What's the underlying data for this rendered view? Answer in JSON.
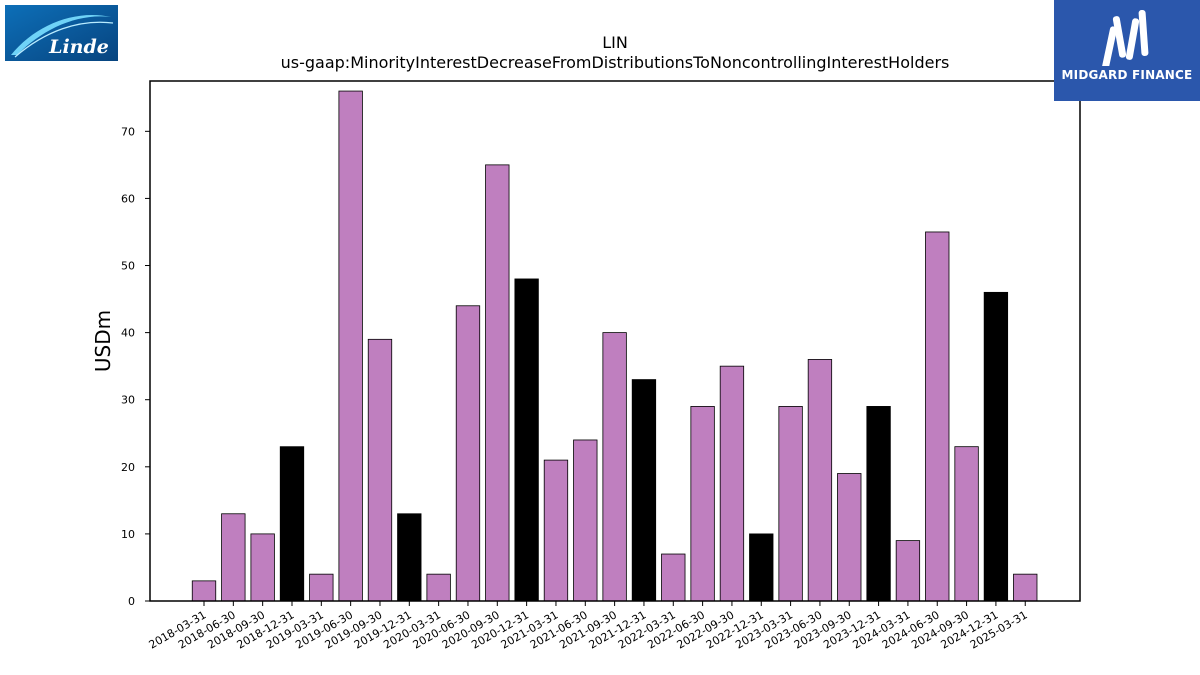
{
  "logos": {
    "left": "Linde",
    "right": "MIDGARD FINANCE"
  },
  "colors": {
    "bar_default": "#bf7fbf",
    "bar_q4": "#000000",
    "linde_blue": "#0a5aa0",
    "midgard_blue": "#2b57ac"
  },
  "chart_data": {
    "type": "bar",
    "title": "LIN",
    "subtitle": "us-gaap:MinorityInterestDecreaseFromDistributionsToNoncontrollingInterestHolders",
    "xlabel": "",
    "ylabel": "USDm",
    "ylim": [
      0,
      77.5
    ],
    "yticks": [
      0,
      10,
      20,
      30,
      40,
      50,
      60,
      70
    ],
    "grid": false,
    "categories": [
      "2018-03-31",
      "2018-06-30",
      "2018-09-30",
      "2018-12-31",
      "2019-03-31",
      "2019-06-30",
      "2019-09-30",
      "2019-12-31",
      "2020-03-31",
      "2020-06-30",
      "2020-09-30",
      "2020-12-31",
      "2021-03-31",
      "2021-06-30",
      "2021-09-30",
      "2021-12-31",
      "2022-03-31",
      "2022-06-30",
      "2022-09-30",
      "2022-12-31",
      "2023-03-31",
      "2023-06-30",
      "2023-09-30",
      "2023-12-31",
      "2024-03-31",
      "2024-06-30",
      "2024-09-30",
      "2024-12-31",
      "2025-03-31"
    ],
    "values": [
      3,
      13,
      10,
      23,
      4,
      76,
      39,
      13,
      4,
      44,
      65,
      48,
      21,
      24,
      40,
      33,
      7,
      29,
      35,
      10,
      29,
      36,
      19,
      29,
      9,
      55,
      23,
      46,
      4
    ],
    "highlight": [
      false,
      false,
      false,
      true,
      false,
      false,
      false,
      true,
      false,
      false,
      false,
      true,
      false,
      false,
      false,
      true,
      false,
      false,
      false,
      true,
      false,
      false,
      false,
      true,
      false,
      false,
      false,
      true,
      false
    ]
  }
}
